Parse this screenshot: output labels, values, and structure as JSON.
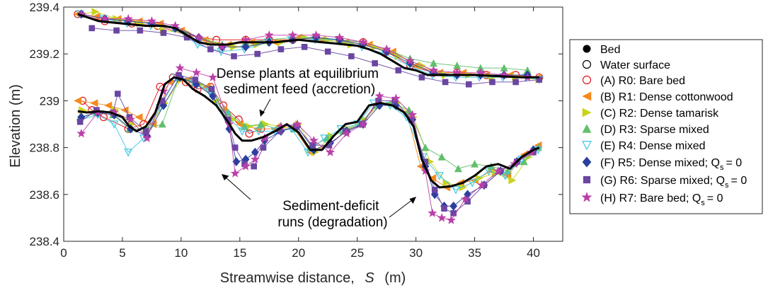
{
  "chart_data": {
    "type": "line",
    "xlabel": "Streamwise distance,",
    "xlabel_symbol": "S",
    "xlabel_unit": "(m)",
    "ylabel": "Elevation (m)",
    "xlim": [
      0,
      42.5
    ],
    "ylim": [
      238.4,
      239.4
    ],
    "xticks": [
      0,
      5,
      10,
      15,
      20,
      25,
      30,
      35,
      40
    ],
    "xtick_labels": [
      "0",
      "5",
      "10",
      "15",
      "20",
      "25",
      "30",
      "35",
      "40"
    ],
    "yticks": [
      238.4,
      238.6,
      238.8,
      239,
      239.2,
      239.4
    ],
    "ytick_labels": [
      "238.4",
      "238.6",
      "238.8",
      "239",
      "239.2",
      "239.4"
    ],
    "legend_position": "right",
    "annotations": [
      {
        "lines": [
          "Dense plants at equilibrium",
          "sediment feed (accretion)"
        ]
      },
      {
        "lines": [
          "Sediment-deficit",
          "runs (degradation)"
        ]
      }
    ],
    "mean_series": [
      {
        "name": "Bed",
        "marker": "dot",
        "color": "#000000",
        "x": [
          1.2,
          2,
          3,
          4,
          5,
          5.6,
          6.2,
          7,
          7.8,
          8.6,
          9.4,
          10.2,
          11,
          12,
          13,
          14,
          14.6,
          15.2,
          16,
          17,
          18,
          19,
          20,
          21,
          22,
          23,
          24,
          25,
          26,
          27,
          28,
          29,
          29.8,
          30.5,
          31.3,
          32,
          33,
          34,
          35,
          36,
          37,
          38,
          39,
          40,
          40.5
        ],
        "y": [
          238.955,
          238.95,
          238.955,
          238.95,
          238.93,
          238.89,
          238.87,
          238.89,
          238.95,
          239.07,
          239.1,
          239.09,
          239.05,
          239.02,
          238.98,
          238.91,
          238.86,
          238.83,
          238.83,
          238.845,
          238.87,
          238.9,
          238.865,
          238.79,
          238.79,
          238.85,
          238.9,
          238.91,
          238.98,
          238.99,
          238.98,
          238.95,
          238.89,
          238.75,
          238.66,
          238.63,
          238.635,
          238.65,
          238.68,
          238.72,
          238.73,
          238.71,
          238.76,
          238.79,
          238.8
        ]
      },
      {
        "name": "Water surface",
        "marker": "circle",
        "color": "#000000",
        "x": [
          1.2,
          3,
          5,
          7,
          8.5,
          9.5,
          10.5,
          11.5,
          12.5,
          14,
          15,
          16,
          17,
          18,
          19,
          20,
          21,
          22,
          23,
          24,
          25,
          26,
          27,
          28,
          29,
          30,
          31,
          32,
          33,
          35,
          37,
          39,
          40.5
        ],
        "y": [
          239.37,
          239.34,
          239.33,
          239.32,
          239.32,
          239.31,
          239.28,
          239.25,
          239.24,
          239.24,
          239.25,
          239.25,
          239.25,
          239.25,
          239.255,
          239.26,
          239.255,
          239.25,
          239.245,
          239.24,
          239.235,
          239.22,
          239.2,
          239.17,
          239.14,
          239.13,
          239.11,
          239.11,
          239.11,
          239.11,
          239.105,
          239.1,
          239.1
        ]
      }
    ],
    "runs": [
      {
        "name": "(A) R0: Bare bed",
        "marker": "circle",
        "color": "#e4141b",
        "bed_x": [
          1.6,
          2.4,
          3.4,
          5.5,
          6.8,
          8.2,
          9.3,
          10.4,
          11.4,
          12.5,
          13.6,
          14.9,
          15.8,
          16.8
        ],
        "bed_y": [
          239.0,
          238.96,
          238.93,
          238.88,
          238.9,
          239.06,
          239.1,
          239.08,
          239.05,
          239.06,
          238.98,
          238.92,
          238.86,
          238.88
        ],
        "ws_x": [
          1.2,
          3.5,
          5.8,
          8,
          10.5,
          13,
          15.5,
          17.5,
          19.5,
          21.5,
          23.5,
          25.5,
          27.5,
          29.5,
          31.5,
          33.5,
          36,
          38.5,
          40.5
        ],
        "ws_y": [
          239.37,
          239.34,
          239.33,
          239.32,
          239.28,
          239.26,
          239.26,
          239.26,
          239.26,
          239.27,
          239.26,
          239.25,
          239.21,
          239.15,
          239.12,
          239.12,
          239.11,
          239.11,
          239.1
        ]
      },
      {
        "name": "(B) R1: Dense cottonwood",
        "marker": "triangle-left",
        "color": "#f48a1e",
        "bed_x": [
          1.2,
          2.6,
          3.8,
          5.2,
          6.4,
          7.6,
          9,
          10.6,
          12.2,
          13.6,
          15,
          16.5,
          18,
          19.5,
          21,
          22.5,
          24,
          25.4,
          26.6,
          27.8,
          29.2,
          30.4,
          31.4,
          32.6,
          33.8,
          35,
          36.4,
          37.8,
          39.2,
          40.4
        ],
        "bed_y": [
          239.0,
          238.99,
          238.98,
          238.96,
          238.93,
          238.9,
          239.08,
          239.09,
          239.06,
          238.96,
          238.9,
          238.88,
          238.88,
          238.89,
          238.78,
          238.81,
          238.87,
          238.9,
          238.98,
          238.99,
          238.95,
          238.72,
          238.67,
          238.63,
          238.65,
          238.66,
          238.7,
          238.68,
          238.77,
          238.81
        ],
        "ws_x": [
          1.2,
          2.8,
          4.6,
          6.4,
          8.2,
          10,
          12,
          14,
          16,
          18,
          20,
          22,
          24,
          26,
          28,
          30,
          32,
          34,
          36,
          38,
          40.4
        ],
        "ws_y": [
          239.37,
          239.36,
          239.35,
          239.34,
          239.33,
          239.3,
          239.26,
          239.24,
          239.25,
          239.25,
          239.27,
          239.26,
          239.25,
          239.24,
          239.21,
          239.15,
          239.12,
          239.12,
          239.11,
          239.11,
          239.1
        ]
      },
      {
        "name": "(C) R2: Dense tamarisk",
        "marker": "triangle-right",
        "color": "#c8d41c",
        "bed_x": [
          1.6,
          3,
          4.4,
          5.8,
          7.2,
          8.6,
          10,
          11.6,
          13,
          14.4,
          15.8,
          17.2,
          18.6,
          20,
          21.4,
          22.8,
          24.2,
          25.6,
          27,
          28.4,
          29.8,
          31.2,
          32.6,
          34,
          35.4,
          36.8,
          38.2,
          39.6
        ],
        "bed_y": [
          238.96,
          238.95,
          238.96,
          238.9,
          238.88,
          238.99,
          239.09,
          239.07,
          239.0,
          238.92,
          238.89,
          238.9,
          238.89,
          238.9,
          238.78,
          238.85,
          238.88,
          238.92,
          238.99,
          238.99,
          238.93,
          238.74,
          238.65,
          238.63,
          238.67,
          238.69,
          238.66,
          238.76
        ],
        "ws_x": [
          1.6,
          2.7,
          4.5,
          6.5,
          8.5,
          10.5,
          12.5,
          14.5,
          16.5,
          18.5,
          20.5,
          22.5,
          24.5,
          26.5,
          28.5,
          30.5,
          32.5,
          34.5,
          36.5,
          38.5,
          40.5
        ],
        "ws_y": [
          239.37,
          239.38,
          239.35,
          239.33,
          239.3,
          239.29,
          239.25,
          239.23,
          239.24,
          239.25,
          239.27,
          239.26,
          239.24,
          239.23,
          239.19,
          239.15,
          239.11,
          239.11,
          239.1,
          239.1,
          239.09
        ]
      },
      {
        "name": "(D) R3: Sparse mixed",
        "marker": "triangle-up",
        "color": "#62bf6c",
        "bed_x": [
          1.4,
          2.8,
          4.2,
          5.6,
          7,
          8.4,
          9.8,
          11.2,
          12.6,
          14,
          15.4,
          16.8,
          18.2,
          19.6,
          21,
          22.4,
          23.8,
          25.2,
          26.6,
          28,
          29.4,
          30.8,
          32.2,
          33.6,
          35,
          36.4,
          37.8,
          39.2,
          40.4
        ],
        "bed_y": [
          238.93,
          238.95,
          238.94,
          238.88,
          238.88,
          238.9,
          239.1,
          239.08,
          239.05,
          238.95,
          238.89,
          238.9,
          238.88,
          238.88,
          238.8,
          238.84,
          238.87,
          238.9,
          238.98,
          238.99,
          238.96,
          238.8,
          238.76,
          238.71,
          238.73,
          238.72,
          238.7,
          238.74,
          238.8
        ],
        "ws_x": [
          1.5,
          3.5,
          5.5,
          7.5,
          9.5,
          11.5,
          13.5,
          15.5,
          17.5,
          19.5,
          21.5,
          23.5,
          25.5,
          27.5,
          29.5,
          31.5,
          33.5,
          35.5,
          37.5,
          39.5
        ],
        "ws_y": [
          239.37,
          239.35,
          239.34,
          239.33,
          239.31,
          239.27,
          239.24,
          239.25,
          239.26,
          239.27,
          239.27,
          239.26,
          239.25,
          239.22,
          239.18,
          239.16,
          239.15,
          239.14,
          239.14,
          239.13
        ]
      },
      {
        "name": "(E) R4: Dense mixed",
        "marker": "triangle-down",
        "color": "#3fc6e2",
        "bed_x": [
          1.5,
          2.9,
          4.3,
          5.5,
          6.8,
          8.2,
          9.6,
          11,
          12.4,
          13.8,
          15.2,
          16.6,
          18,
          19.4,
          20.8,
          22.2,
          23.6,
          25,
          26.4,
          27.8,
          29.2,
          30.6,
          32,
          33.4,
          34.8,
          36.2,
          37.6,
          39,
          40.4
        ],
        "bed_y": [
          238.92,
          238.94,
          238.9,
          238.78,
          238.84,
          238.97,
          239.1,
          239.08,
          239.04,
          238.94,
          238.87,
          238.87,
          238.87,
          238.88,
          238.78,
          238.84,
          238.88,
          238.9,
          238.99,
          238.98,
          238.93,
          238.76,
          238.68,
          238.62,
          238.65,
          238.7,
          238.68,
          238.75,
          238.79
        ],
        "ws_x": [
          1.4,
          3.4,
          5.4,
          7.4,
          9.4,
          11.4,
          13.4,
          15.4,
          17.4,
          19.4,
          21.4,
          23.4,
          25.4,
          27.4,
          29.4,
          31.4,
          33.4,
          35.4,
          37.4,
          39.4,
          40.5
        ],
        "ws_y": [
          239.37,
          239.35,
          239.33,
          239.32,
          239.31,
          239.24,
          239.21,
          239.22,
          239.25,
          239.26,
          239.26,
          239.26,
          239.23,
          239.2,
          239.15,
          239.11,
          239.1,
          239.1,
          239.1,
          239.1,
          239.09
        ]
      },
      {
        "name": "(F) R5: Dense mixed; Q_s = 0",
        "label_main": "(F) R5: Dense mixed; Q",
        "label_sub": "s",
        "label_tail": "= 0",
        "marker": "diamond",
        "color": "#2c3f9e",
        "bed_x": [
          1.5,
          2.9,
          4.3,
          5.7,
          7.1,
          8.5,
          9.9,
          11.3,
          12.7,
          14.1,
          14.7,
          15.5,
          16.3,
          17.1,
          18.5,
          19.9,
          21.3,
          22.7,
          24.1,
          25.5,
          26.9,
          28.3,
          29.7,
          30.8,
          31.6,
          32.4,
          33.2,
          34.4,
          35.8,
          37.2,
          38.6,
          40
        ],
        "bed_y": [
          238.93,
          238.95,
          238.94,
          238.88,
          238.85,
          238.98,
          239.1,
          239.07,
          239.02,
          238.88,
          238.74,
          238.75,
          238.78,
          238.83,
          238.87,
          238.89,
          238.79,
          238.82,
          238.87,
          238.9,
          238.98,
          238.98,
          238.92,
          238.72,
          238.6,
          238.55,
          238.55,
          238.6,
          238.64,
          238.7,
          238.74,
          238.79
        ],
        "ws_x": [
          1.5,
          3.5,
          5.5,
          7.5,
          9.5,
          11.5,
          13.5,
          15.5,
          17.5,
          19.5,
          21.5,
          23.5,
          25.5,
          27.5,
          29.5,
          31.5,
          33.5,
          35.5,
          37.5,
          39.5
        ],
        "ws_y": [
          239.37,
          239.35,
          239.34,
          239.33,
          239.31,
          239.27,
          239.23,
          239.23,
          239.25,
          239.26,
          239.27,
          239.26,
          239.24,
          239.21,
          239.16,
          239.12,
          239.11,
          239.11,
          239.11,
          239.11
        ]
      },
      {
        "name": "(G) R6: Sparse mixed; Q_s = 0",
        "label_main": "(G) R6: Sparse mixed; Q",
        "label_sub": "s",
        "label_tail": "= 0",
        "marker": "square",
        "color": "#6a46a2",
        "bed_x": [
          1.4,
          2.8,
          4.2,
          4.6,
          5.6,
          7,
          8.4,
          9.8,
          11.2,
          12.6,
          14,
          14.6,
          15.4,
          16.2,
          17,
          18.4,
          19.8,
          21.2,
          22.6,
          24,
          25.4,
          26.8,
          28.2,
          29.6,
          30.8,
          31.6,
          32.4,
          33.2,
          34.4,
          35.8,
          37.2,
          38.6,
          40
        ],
        "bed_y": [
          238.91,
          238.96,
          238.95,
          239.03,
          238.93,
          238.87,
          239.0,
          239.11,
          239.09,
          239.05,
          238.92,
          238.8,
          238.73,
          238.72,
          238.8,
          238.87,
          238.89,
          238.81,
          238.81,
          238.87,
          238.9,
          239.0,
          239.0,
          238.92,
          238.74,
          238.62,
          238.54,
          238.52,
          238.57,
          238.64,
          238.7,
          238.74,
          238.78
        ],
        "ws_x": [
          2.4,
          4.5,
          6.5,
          8.5,
          10.5,
          12.5,
          14.5,
          16.5,
          18.5,
          20.5,
          22.5,
          24.5,
          26.5,
          28.5,
          30.5,
          32.5,
          34.5,
          36.5,
          38.5,
          40.5
        ],
        "ws_y": [
          239.31,
          239.3,
          239.3,
          239.29,
          239.27,
          239.22,
          239.19,
          239.2,
          239.22,
          239.23,
          239.21,
          239.19,
          239.16,
          239.13,
          239.1,
          239.08,
          239.07,
          239.08,
          239.08,
          239.09
        ]
      },
      {
        "name": "(H) R7: Bare bed; Q_s = 0",
        "label_main": "(H) R7: Bare bed; Q",
        "label_sub": "s",
        "label_tail": "= 0",
        "marker": "star",
        "color": "#bb3fa8",
        "bed_x": [
          1.5,
          2.9,
          4.3,
          5.7,
          7.1,
          8.5,
          9.9,
          11.3,
          12.7,
          14.1,
          14.6,
          15.5,
          16.3,
          17.1,
          18.5,
          19.9,
          21.3,
          22.7,
          24.1,
          25.5,
          26.9,
          28.3,
          29.7,
          30.8,
          31.4,
          32.2,
          33,
          34.2,
          35.6,
          37,
          38.4,
          39.8
        ],
        "bed_y": [
          238.86,
          238.95,
          238.95,
          238.92,
          238.84,
          239.04,
          239.14,
          239.12,
          239.1,
          238.9,
          238.69,
          238.72,
          238.75,
          238.84,
          238.89,
          238.9,
          238.83,
          238.78,
          238.86,
          238.9,
          239.02,
          239.01,
          238.94,
          238.7,
          238.52,
          238.5,
          238.49,
          238.58,
          238.64,
          238.7,
          238.73,
          238.78
        ],
        "ws_x": [
          1.5,
          3.5,
          5.5,
          7.5,
          9.5,
          11.5,
          13.5,
          15.5,
          17.5,
          19.5,
          21.5,
          23.5,
          25.5,
          27.5,
          29.5,
          31.5,
          33.5,
          35.5,
          37.5,
          39.5
        ],
        "ws_y": [
          239.37,
          239.35,
          239.35,
          239.34,
          239.32,
          239.27,
          239.23,
          239.26,
          239.28,
          239.28,
          239.28,
          239.27,
          239.25,
          239.22,
          239.17,
          239.13,
          239.12,
          239.12,
          239.11,
          239.1
        ]
      }
    ],
    "legend": [
      {
        "label": "Bed"
      },
      {
        "label": "Water surface"
      },
      {
        "label": "(A) R0: Bare bed"
      },
      {
        "label": "(B) R1: Dense cottonwood"
      },
      {
        "label": "(C) R2: Dense tamarisk"
      },
      {
        "label": "(D) R3: Sparse mixed"
      },
      {
        "label": "(E) R4: Dense mixed"
      },
      {
        "label": "(F) R5: Dense mixed; Q",
        "sub": "s",
        "tail": "= 0"
      },
      {
        "label": "(G) R6: Sparse mixed; Q",
        "sub": "s",
        "tail": "= 0"
      },
      {
        "label": "(H) R7: Bare bed; Q",
        "sub": "s",
        "tail": "= 0"
      }
    ]
  }
}
